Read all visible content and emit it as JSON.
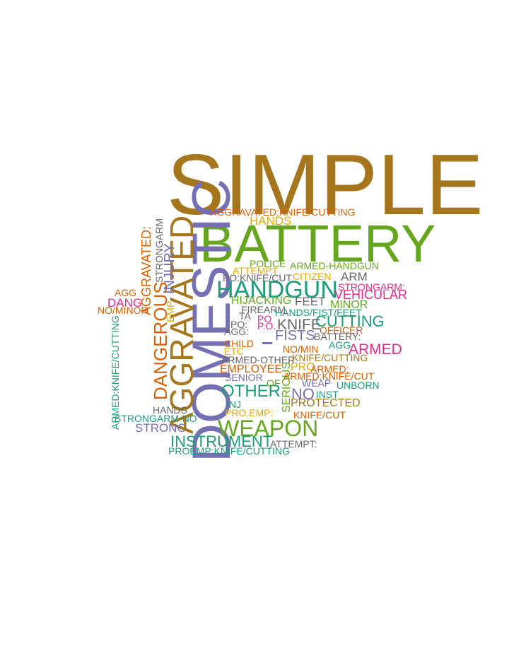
{
  "palette": {
    "gold": "#A6761D",
    "green": "#66A61E",
    "teal": "#1B9E77",
    "purple": "#7570B3",
    "orange": "#D95F02",
    "pink": "#E7298A",
    "yellow": "#E6AB02",
    "gray": "#666666"
  },
  "words": {
    "simple": "SIMPLE",
    "battery": "BATTERY",
    "domestic": "DOMESTIC",
    "aggravated_big": "AGGRAVATED",
    "handgun": "HANDGUN",
    "weapon": "WEAPON",
    "dangerous": "DANGEROUS",
    "other": "OTHER",
    "instrument": "INSTRUMENT",
    "agg_knife_cutting": "AGGRAVATED:KNIFE/CUTTING",
    "hands": "HANDS",
    "aggravated_v": "AGGRAVATED:",
    "strongarm_v": "STRONGARM",
    "injury_v": "INJURY",
    "emp_v": "EMP",
    "police": "POLICE",
    "armed_handgun": "ARMED-HANDGUN",
    "attempt": "ATTEMPT",
    "citizen": "CITIZEN",
    "arm": "ARM",
    "po_knife_cut": "PO:KNIFE/CUT",
    "strongarm_colon": "STRONGARM:",
    "vehicular": "VEHICULAR",
    "hijacking": "HIJACKING",
    "feet": "FEET",
    "minor": "MINOR",
    "agg_small": "AGG",
    "dang": "DANG",
    "no_minor": "NO/MINOR",
    "firearm": "FIREARM",
    "hands_fist_feet": "HANDS/FIST/FEET",
    "ta": "TA",
    "po_red": "PO",
    "cutting": "CUTTING",
    "po_colon": "PO:",
    "p_o": "P.O.",
    "knife": "KNIFE",
    "officer": "OFFICER",
    "agg_colon": "AGG:",
    "fists": "FISTS",
    "battery_colon": "BATTERY:",
    "child": "CHILD",
    "agg_teal": "AGG",
    "armed": "ARMED",
    "etc": "ETC",
    "no_min": "NO/MIN",
    "armed_other": "ARMED-OTHER",
    "knife_cutting": "KNIFE/CUTTING",
    "armed_knife_cutting_v": "ARMED:KNIFE/CUTTING",
    "employee": "EMPLOYEE",
    "pro": "PRO",
    "armed_colon": "ARMED:",
    "senior": "SENIOR",
    "armed_knife_cut": "ARMED:KNIFE/CUT",
    "of": "OF",
    "weap": "WEAP",
    "unborn": "UNBORN",
    "serious_v": "SERIOUS",
    "no": "NO",
    "inst": "INST",
    "inj": "INJ",
    "protected": "PROTECTED",
    "pro_emp": "PRO.EMP:",
    "knife_cut": "KNIFE/CUT",
    "hands_small": "HANDS",
    "strongarm_no": "STRONGARM-NO",
    "strong": "STRONG",
    "attempt_colon": "ATTEMPT:",
    "proemp_knife_cutting": "PROEMP:KNIFE/CUTTING"
  }
}
